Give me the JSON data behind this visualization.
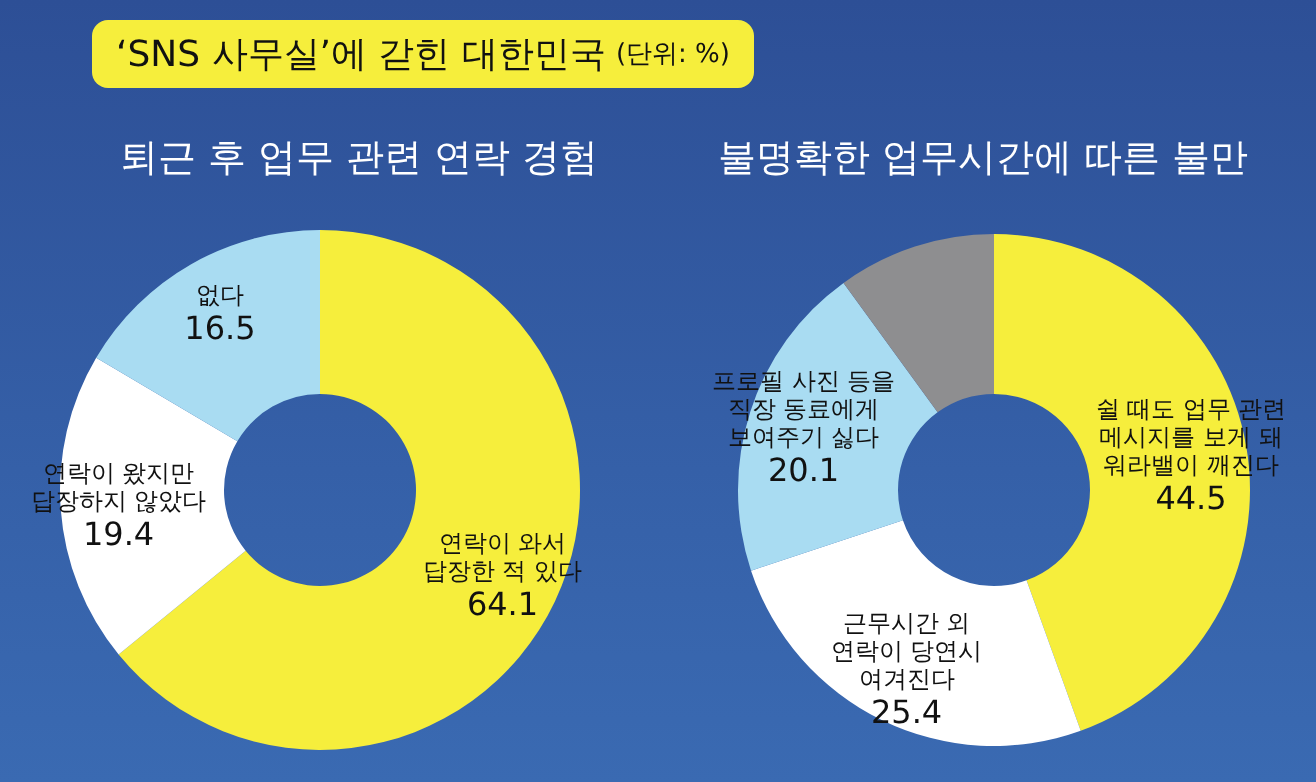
{
  "chart_data": [
    {
      "type": "donut",
      "title": "퇴근 후 업무 관련 연락 경험",
      "annotations": [
        "‘SNS 사무실’에 갇힌 대한민국",
        "(단위: %)"
      ],
      "categories": [
        "연락이 와서 답장한 적 있다",
        "연락이 왔지만 답장하지 않았다",
        "없다"
      ],
      "values": [
        64.1,
        19.4,
        16.5
      ],
      "colors": [
        "#f6ee3c",
        "#ffffff",
        "#a9dcf2"
      ],
      "data_labels": true
    },
    {
      "type": "donut",
      "title": "불명확한 업무시간에 따른 불만",
      "categories": [
        "쉴 때도 업무 관련 메시지를 보게 돼 워라밸이 깨진다",
        "근무시간 외 연락이 당연시 여겨진다",
        "프로필 사진 등을 직장 동료에게 보여주기 싫다",
        null
      ],
      "values": [
        44.5,
        25.4,
        20.1,
        10.0
      ],
      "colors": [
        "#f6ee3c",
        "#ffffff",
        "#a9dcf2",
        "#8e8e90"
      ],
      "value_labels": [
        "44.5",
        "25.4",
        "20.1",
        null
      ]
    }
  ]
}
